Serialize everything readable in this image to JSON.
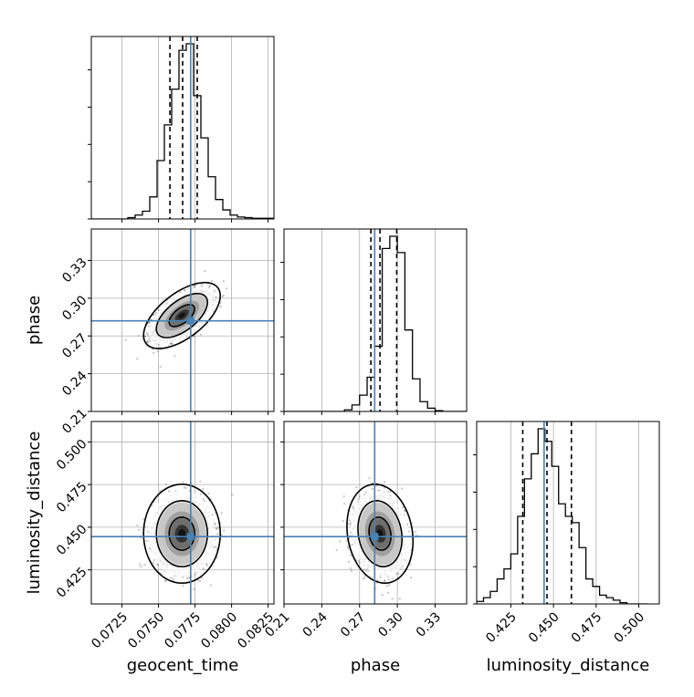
{
  "chart_data": {
    "type": "corner",
    "parameters": [
      "geocent_time",
      "phase",
      "luminosity_distance"
    ],
    "truths": {
      "geocent_time": 0.0772,
      "phase": 0.282,
      "luminosity_distance": 0.4445
    },
    "truth_color": "#4682b4",
    "grid": true,
    "axes": {
      "geocent_time": {
        "range": [
          0.0704,
          0.0829
        ],
        "ticks": [
          0.0725,
          0.075,
          0.0775,
          0.08,
          0.0825
        ],
        "tick_labels": [
          "0.0725",
          "0.0750",
          "0.0775",
          "0.0800",
          "0.0825"
        ]
      },
      "phase": {
        "range": [
          0.21,
          0.355
        ],
        "ticks": [
          0.21,
          0.24,
          0.27,
          0.3,
          0.33
        ],
        "tick_labels": [
          "0.21",
          "0.24",
          "0.27",
          "0.30",
          "0.33"
        ]
      },
      "luminosity_distance": {
        "range": [
          0.405,
          0.512
        ],
        "ticks": [
          0.425,
          0.45,
          0.475,
          0.5
        ],
        "tick_labels": [
          "0.425",
          "0.450",
          "0.475",
          "0.500"
        ]
      }
    },
    "histograms": [
      {
        "parameter": "geocent_time",
        "bin_edges": [
          0.0704,
          0.0709,
          0.0714,
          0.0719,
          0.0724,
          0.0729,
          0.0734,
          0.0739,
          0.0744,
          0.0749,
          0.0754,
          0.0759,
          0.0764,
          0.0769,
          0.0774,
          0.0779,
          0.0784,
          0.0789,
          0.0794,
          0.0799,
          0.0804,
          0.0809,
          0.0814,
          0.0819,
          0.0824,
          0.0829
        ],
        "counts": [
          0,
          0,
          0,
          0,
          0,
          2,
          6,
          12,
          34,
          90,
          145,
          200,
          260,
          270,
          190,
          125,
          65,
          30,
          14,
          6,
          3,
          2,
          1,
          1,
          1
        ],
        "quantiles": [
          0.07578,
          0.07665,
          0.07765
        ]
      },
      {
        "parameter": "phase",
        "bin_edges": [
          0.21,
          0.216,
          0.222,
          0.228,
          0.234,
          0.24,
          0.246,
          0.252,
          0.258,
          0.264,
          0.27,
          0.276,
          0.282,
          0.288,
          0.294,
          0.3,
          0.306,
          0.312,
          0.318,
          0.324,
          0.33,
          0.336,
          0.342,
          0.348,
          0.355
        ],
        "counts": [
          0,
          0,
          0,
          0,
          0,
          0,
          0,
          0,
          2,
          8,
          20,
          42,
          80,
          200,
          215,
          195,
          100,
          40,
          12,
          4,
          1,
          0,
          0,
          0
        ],
        "quantiles": [
          0.279,
          0.2862,
          0.2995
        ]
      },
      {
        "parameter": "luminosity_distance",
        "bin_edges": [
          0.405,
          0.409,
          0.413,
          0.417,
          0.421,
          0.425,
          0.429,
          0.433,
          0.437,
          0.441,
          0.445,
          0.449,
          0.453,
          0.457,
          0.461,
          0.465,
          0.469,
          0.473,
          0.477,
          0.481,
          0.485,
          0.489,
          0.493,
          0.497,
          0.501,
          0.505
        ],
        "counts": [
          2,
          5,
          10,
          20,
          28,
          40,
          70,
          100,
          120,
          140,
          130,
          110,
          80,
          70,
          65,
          45,
          20,
          14,
          7,
          5,
          3,
          1,
          0,
          0,
          0
        ],
        "quantiles": [
          0.432,
          0.4462,
          0.4605
        ]
      }
    ],
    "pairs": [
      {
        "x": "geocent_time",
        "y": "phase",
        "mean": [
          0.0766,
          0.2862
        ],
        "sd": [
          0.00095,
          0.0095
        ],
        "correlation": 0.6,
        "n_points": 1400,
        "contour_levels": [
          0.393,
          0.865,
          0.989
        ]
      },
      {
        "x": "geocent_time",
        "y": "luminosity_distance",
        "mean": [
          0.0766,
          0.4462
        ],
        "sd": [
          0.00095,
          0.0105
        ],
        "correlation": 0.0,
        "n_points": 1400,
        "contour_levels": [
          0.393,
          0.865,
          0.989
        ]
      },
      {
        "x": "phase",
        "y": "luminosity_distance",
        "mean": [
          0.2862,
          0.4462
        ],
        "sd": [
          0.0095,
          0.0105
        ],
        "correlation": -0.15,
        "n_points": 1400,
        "contour_levels": [
          0.393,
          0.865,
          0.989
        ]
      }
    ]
  }
}
